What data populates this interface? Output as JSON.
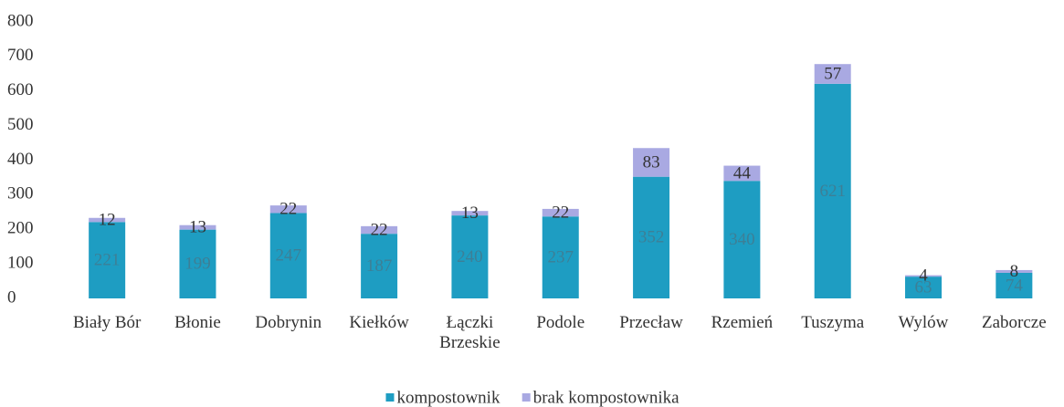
{
  "chart_data": {
    "type": "stacked_bar",
    "categories": [
      "Biały Bór",
      "Błonie",
      "Dobrynin",
      "Kiełków",
      "Łączki Brzeskie",
      "Podole",
      "Przecław",
      "Rzemień",
      "Tuszyma",
      "Wylów",
      "Zaborcze"
    ],
    "series": [
      {
        "name": "kompostownik",
        "color": "#1e9dc2",
        "values": [
          221,
          199,
          247,
          187,
          240,
          237,
          352,
          340,
          621,
          63,
          74
        ]
      },
      {
        "name": "brak kompostownika",
        "color": "#a9a9e2",
        "values": [
          12,
          13,
          22,
          22,
          13,
          22,
          83,
          44,
          57,
          4,
          8
        ]
      }
    ],
    "ylim": [
      0,
      800
    ],
    "yticks": [
      0,
      100,
      200,
      300,
      400,
      500,
      600,
      700,
      800
    ],
    "legend": "bottom"
  }
}
